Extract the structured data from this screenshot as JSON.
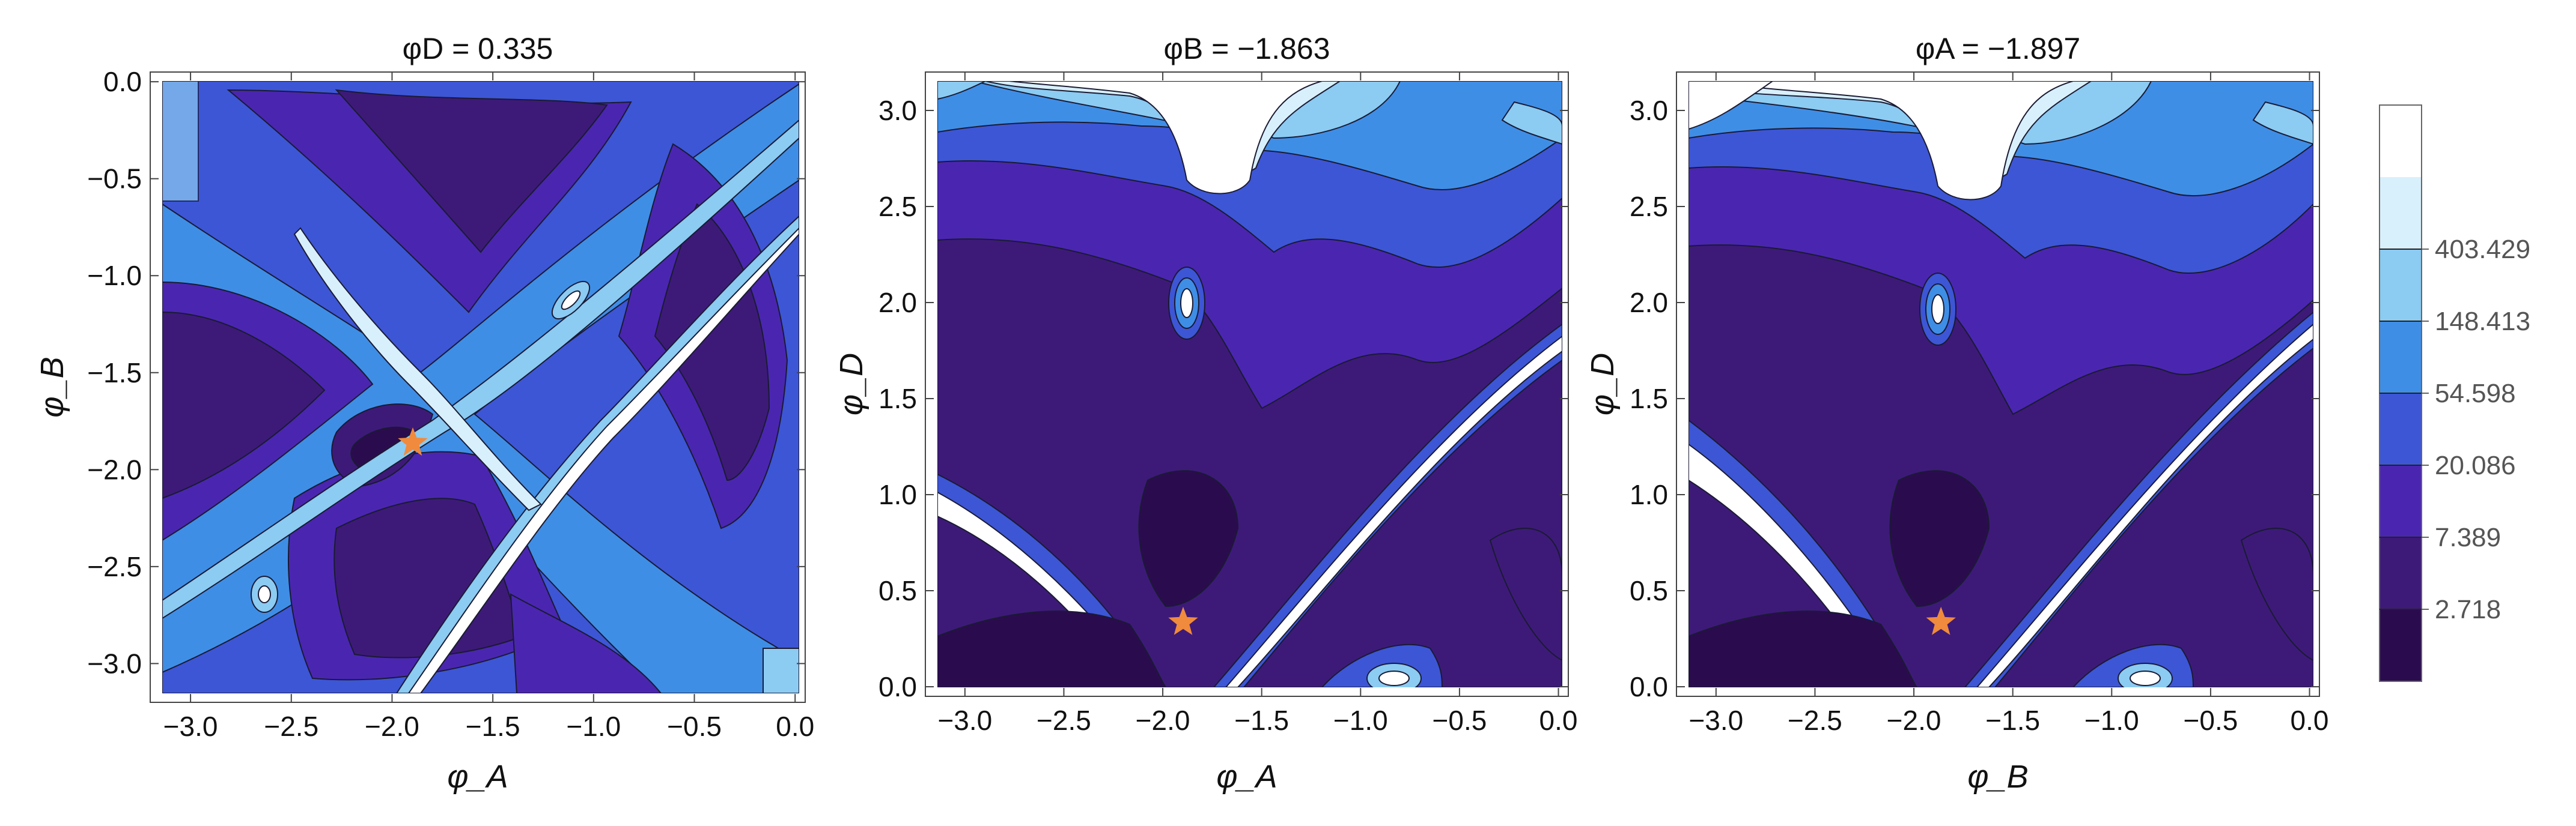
{
  "chart_data": [
    {
      "type": "heatmap",
      "title": "φD = 0.335",
      "xlabel": "φ_A",
      "ylabel": "φ_B",
      "xlim": [
        -3.2,
        0.05
      ],
      "ylim": [
        -3.2,
        0.05
      ],
      "xticks": [
        "-3.0",
        "-2.5",
        "-2.0",
        "-1.5",
        "-1.0",
        "-0.5",
        "0.0"
      ],
      "yticks": [
        "-3.0",
        "-2.5",
        "-2.0",
        "-1.5",
        "-1.0",
        "-0.5",
        "0.0"
      ],
      "minimum_marker": {
        "x": -1.897,
        "y": -1.863,
        "symbol": "star",
        "color": "#f08a3c"
      }
    },
    {
      "type": "heatmap",
      "title": "φB = −1.863",
      "xlabel": "φ_A",
      "ylabel": "φ_D",
      "xlim": [
        -3.2,
        0.05
      ],
      "ylim": [
        -0.05,
        3.2
      ],
      "xticks": [
        "-3.0",
        "-2.5",
        "-2.0",
        "-1.5",
        "-1.0",
        "-0.5",
        "0.0"
      ],
      "yticks": [
        "0.0",
        "0.5",
        "1.0",
        "1.5",
        "2.0",
        "2.5",
        "3.0"
      ],
      "minimum_marker": {
        "x": -1.897,
        "y": 0.335,
        "symbol": "star",
        "color": "#f08a3c"
      }
    },
    {
      "type": "heatmap",
      "title": "φA = −1.897",
      "xlabel": "φ_B",
      "ylabel": "φ_D",
      "xlim": [
        -3.2,
        0.05
      ],
      "ylim": [
        -0.05,
        3.2
      ],
      "xticks": [
        "-3.0",
        "-2.5",
        "-2.0",
        "-1.5",
        "-1.0",
        "-0.5",
        "0.0"
      ],
      "yticks": [
        "0.0",
        "0.5",
        "1.0",
        "1.5",
        "2.0",
        "2.5",
        "3.0"
      ],
      "minimum_marker": {
        "x": -1.863,
        "y": 0.335,
        "symbol": "star",
        "color": "#f08a3c"
      }
    }
  ],
  "colorbar": {
    "levels": [
      "2.718",
      "7.389",
      "20.086",
      "54.598",
      "148.413",
      "403.429"
    ],
    "colors": [
      "#2a0c4e",
      "#3d1a78",
      "#4a26b0",
      "#3d56d6",
      "#3f8ee6",
      "#8ccbf2",
      "#d8f0fb",
      "#ffffff"
    ]
  }
}
